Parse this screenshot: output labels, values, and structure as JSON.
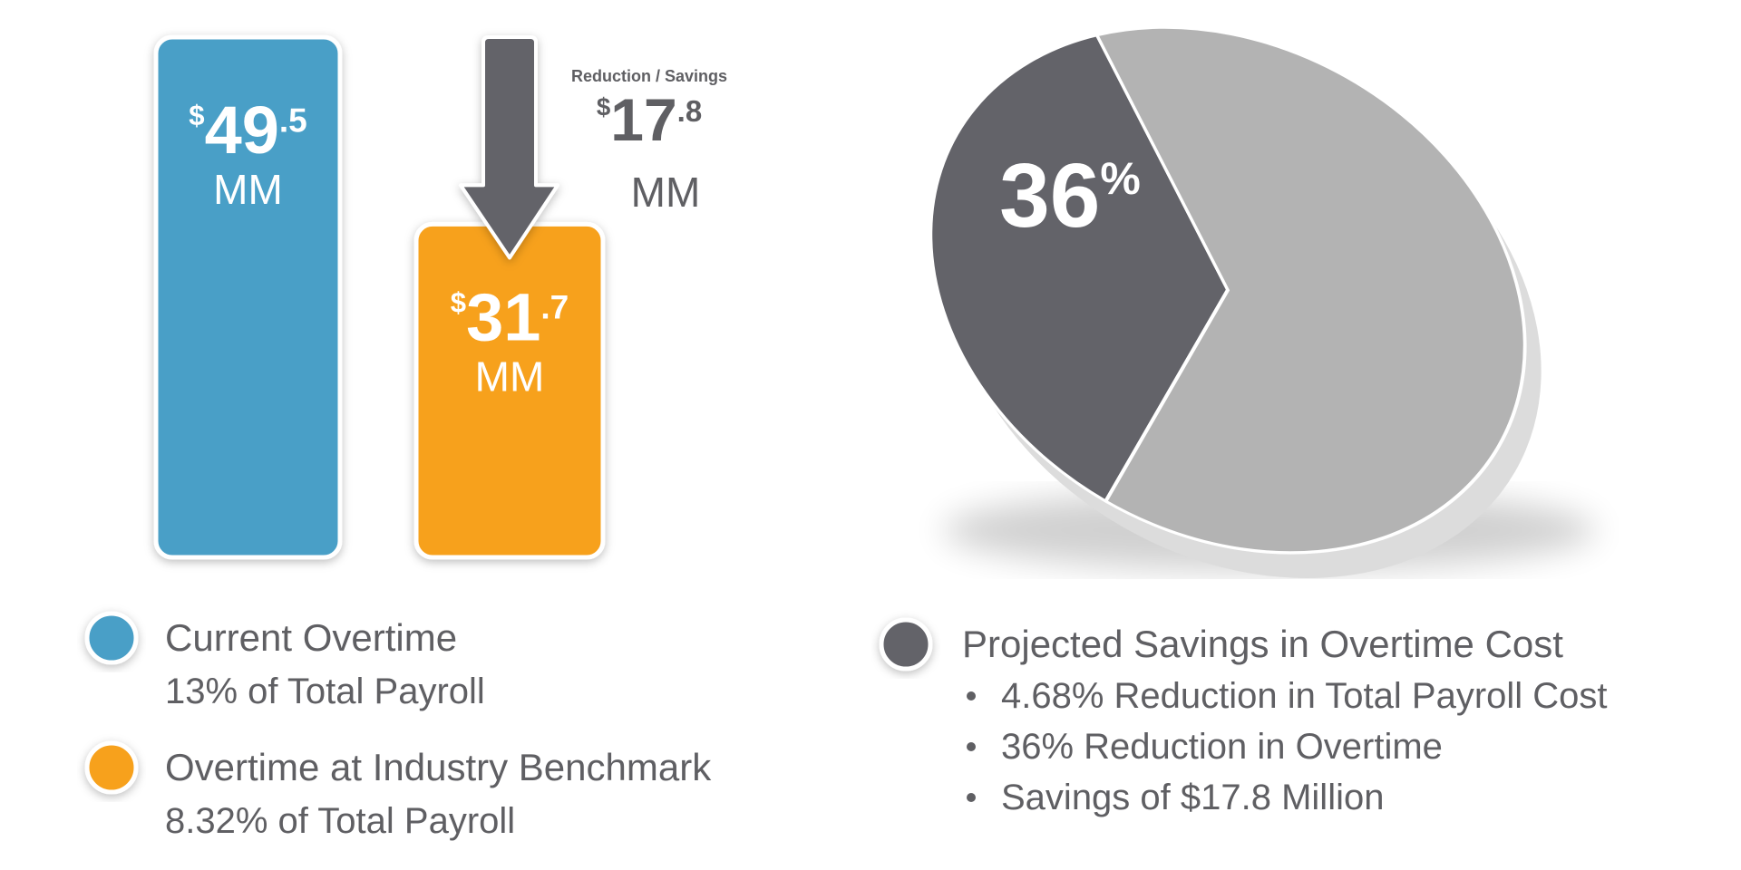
{
  "chart_data": [
    {
      "type": "bar",
      "categories": [
        "Current Overtime",
        "Overtime at Industry Benchmark"
      ],
      "category_notes": [
        "13% of Total Payroll",
        "8.32% of Total Payroll"
      ],
      "values": [
        49.5,
        31.7
      ],
      "value_labels": [
        "$49.5",
        "$31.7"
      ],
      "unit_label": "MM",
      "colors": [
        "#4a9fc7",
        "#f7a11c"
      ],
      "annotation": {
        "label": "Reduction / Savings",
        "value": 17.8,
        "value_label": "$17.8",
        "unit_label": "MM",
        "color": "#636369"
      }
    },
    {
      "type": "pie",
      "values": [
        36,
        64
      ],
      "value_labels": [
        "36%",
        null
      ],
      "colors": [
        "#636369",
        "#b3b3b3"
      ],
      "legend": {
        "label": "Projected Savings in Overtime Cost",
        "color": "#636369",
        "bullets": [
          "4.68% Reduction in Total Payroll Cost",
          "36% Reduction in Overtime",
          "Savings of $17.8 Million"
        ]
      }
    }
  ]
}
